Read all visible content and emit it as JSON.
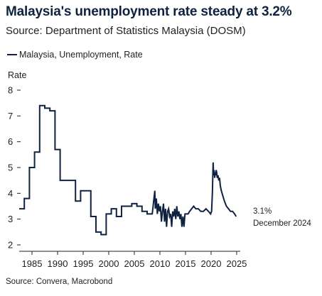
{
  "header": {
    "title": "Malaysia's unemployment rate steady at 3.2%",
    "subtitle": "Source: Department of Statistics Malaysia (DOSM)"
  },
  "footer": {
    "source": "Source: Convera, Macrobond"
  },
  "colors": {
    "line": "#0f2340",
    "axis": "#222222"
  },
  "chart_data": {
    "type": "line",
    "title": "Malaysia's unemployment rate steady at 3.2%",
    "ylabel": "Rate",
    "xlabel": "",
    "xlim": [
      1982.5,
      2025.7
    ],
    "ylim": [
      2,
      8
    ],
    "x_ticks": [
      1985,
      1990,
      1995,
      2000,
      2005,
      2010,
      2015,
      2020,
      2025
    ],
    "y_ticks": [
      2,
      3,
      4,
      5,
      6,
      7,
      8
    ],
    "legend_position": "top-left",
    "grid": false,
    "annotation": {
      "value_label": "3.1%",
      "date_label": "December 2024"
    },
    "series": [
      {
        "name": "Malaysia, Unemployment, Rate",
        "x": [
          1982.5,
          1983.5,
          1983.5,
          1984.5,
          1984.5,
          1985.5,
          1985.5,
          1986.5,
          1986.5,
          1987.5,
          1987.5,
          1988.5,
          1988.5,
          1989.5,
          1989.5,
          1990.5,
          1990.5,
          1991.5,
          1991.5,
          1992.5,
          1992.5,
          1993.5,
          1993.5,
          1994.5,
          1994.5,
          1995.5,
          1995.5,
          1996.5,
          1996.5,
          1997.5,
          1997.5,
          1998.5,
          1998.5,
          1999.5,
          1999.5,
          2000.5,
          2000.5,
          2001.5,
          2001.5,
          2002.5,
          2002.5,
          2003.5,
          2003.5,
          2004.5,
          2004.5,
          2005.5,
          2005.5,
          2006.5,
          2006.5,
          2007.5,
          2007.5,
          2008.5,
          2008.5,
          2009.0,
          2009.1,
          2009.3,
          2009.5,
          2009.7,
          2009.9,
          2010.1,
          2010.3,
          2010.5,
          2010.7,
          2010.9,
          2011.1,
          2011.3,
          2011.5,
          2011.7,
          2011.9,
          2012.1,
          2012.3,
          2012.5,
          2012.7,
          2012.9,
          2013.1,
          2013.3,
          2013.5,
          2013.7,
          2013.9,
          2014.1,
          2014.3,
          2014.5,
          2014.7,
          2014.9,
          2015.2,
          2015.5,
          2015.8,
          2016.2,
          2016.6,
          2017.0,
          2017.5,
          2018.0,
          2018.5,
          2019.0,
          2019.5,
          2019.9,
          2020.1,
          2020.25,
          2020.4,
          2020.5,
          2020.6,
          2020.7,
          2020.8,
          2020.9,
          2021.0,
          2021.1,
          2021.2,
          2021.35,
          2021.5,
          2021.65,
          2021.8,
          2022.0,
          2022.3,
          2022.6,
          2023.0,
          2023.4,
          2023.8,
          2024.2,
          2024.6,
          2024.9
        ],
        "y": [
          3.4,
          3.4,
          3.8,
          3.8,
          5.0,
          5.0,
          5.6,
          5.6,
          7.4,
          7.4,
          7.3,
          7.3,
          7.2,
          7.2,
          5.7,
          5.7,
          4.5,
          4.5,
          4.5,
          4.5,
          4.5,
          4.5,
          3.7,
          3.7,
          4.1,
          4.1,
          4.1,
          4.1,
          3.1,
          3.1,
          2.5,
          2.5,
          2.4,
          2.4,
          3.2,
          3.2,
          3.4,
          3.4,
          3.1,
          3.1,
          3.5,
          3.5,
          3.5,
          3.5,
          3.6,
          3.6,
          3.5,
          3.5,
          3.3,
          3.3,
          3.2,
          3.2,
          3.2,
          4.1,
          3.4,
          3.8,
          3.2,
          3.6,
          3.3,
          3.5,
          2.9,
          3.3,
          3.6,
          2.9,
          3.4,
          2.7,
          3.3,
          3.4,
          3.1,
          3.2,
          2.7,
          3.3,
          3.1,
          3.4,
          3.0,
          3.5,
          3.1,
          3.3,
          3.0,
          3.2,
          2.7,
          3.1,
          2.7,
          3.2,
          3.2,
          3.2,
          3.3,
          3.4,
          3.5,
          3.4,
          3.4,
          3.3,
          3.3,
          3.4,
          3.3,
          3.2,
          3.3,
          4.0,
          5.2,
          4.7,
          4.9,
          4.6,
          4.8,
          4.7,
          4.9,
          4.8,
          4.6,
          4.7,
          4.5,
          4.6,
          4.3,
          4.1,
          3.9,
          3.7,
          3.5,
          3.4,
          3.3,
          3.3,
          3.2,
          3.1
        ]
      }
    ]
  }
}
